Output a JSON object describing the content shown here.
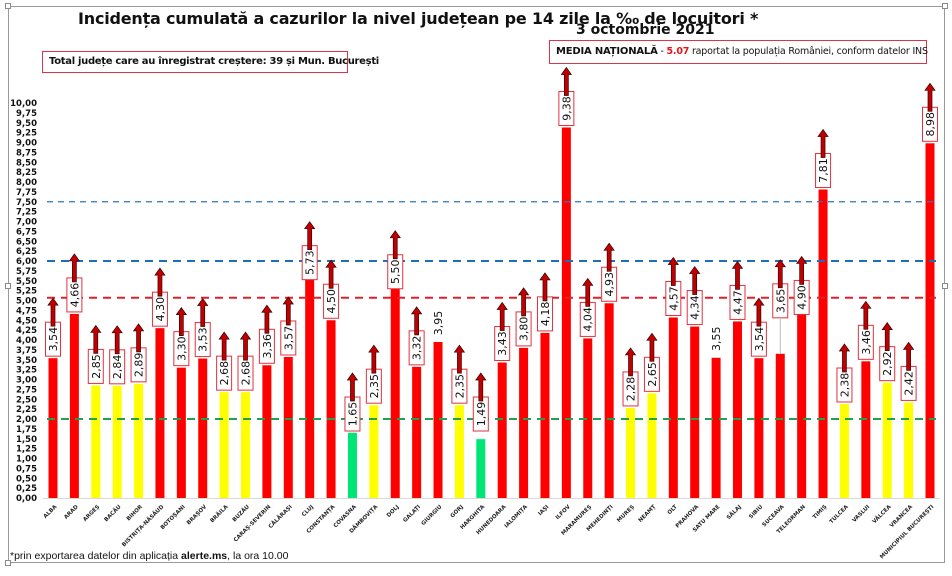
{
  "header": {
    "title": "Incidența cumulată a cazurilor la nivel județean pe 14 zile la ‰ de locuitori *",
    "date": "3 octombrie 2021"
  },
  "annotations": {
    "total_box_prefix": "Total județe care au înregistrat creștere:  ",
    "total_box_value": "39 și Mun. București",
    "media_label": "MEDIA NAȚIONALĂ",
    "media_dash": " - ",
    "media_value": "5.07",
    "media_suffix": " raportat la populația României, conform datelor INS",
    "footnote_prefix": "*prin exportarea datelor din aplicația ",
    "footnote_bold": "alerte.ms",
    "footnote_suffix": ", la ora 10.00"
  },
  "colors": {
    "red": "#ff0000",
    "yellow": "#ffff00",
    "green": "#00e676",
    "arrow": "#c00000",
    "label_border": "#e0323f",
    "line_green": "#20a050",
    "line_red": "#e0202a",
    "line_blue": "#1f6fb8",
    "line_blue_light": "#2e75b6"
  },
  "chart_data": {
    "type": "bar",
    "title": "Incidența cumulată a cazurilor la nivel județean pe 14 zile la ‰ de locuitori *",
    "subtitle": "3 octombrie 2021",
    "xlabel": "",
    "ylabel": "",
    "ylim": [
      0,
      10
    ],
    "ytick_step": 0.25,
    "yticks": [
      "0,00",
      "0,25",
      "0,50",
      "0,75",
      "1,00",
      "1,25",
      "1,50",
      "1,75",
      "2,00",
      "2,25",
      "2,50",
      "2,75",
      "3,00",
      "3,25",
      "3,50",
      "3,75",
      "4,00",
      "4,25",
      "4,50",
      "4,75",
      "5,00",
      "5,25",
      "5,50",
      "5,75",
      "6,00",
      "6,25",
      "6,50",
      "6,75",
      "7,00",
      "7,25",
      "7,50",
      "7,75",
      "8,00",
      "8,25",
      "8,50",
      "8,75",
      "9,00",
      "9,25",
      "9,50",
      "9,75",
      "10,00"
    ],
    "grid": false,
    "legend": "none",
    "categories": [
      "ALBA",
      "ARAD",
      "ARGEȘ",
      "BACĂU",
      "BIHOR",
      "BISTRIȚA-NĂSĂUD",
      "BOTOȘANI",
      "BRAȘOV",
      "BRĂILA",
      "BUZĂU",
      "CARAȘ-SEVERIN",
      "CĂLĂRAȘI",
      "CLUJ",
      "CONSTANȚA",
      "COVASNA",
      "DÂMBOVIȚA",
      "DOLJ",
      "GALAȚI",
      "GIURGIU",
      "GORJ",
      "HARGHITA",
      "HUNEDOARA",
      "IALOMIȚA",
      "IAȘI",
      "ILFOV",
      "MARAMUREȘ",
      "MEHEDINȚI",
      "MUREȘ",
      "NEAMȚ",
      "OLT",
      "PRAHOVA",
      "SATU MARE",
      "SĂLAJ",
      "SIBIU",
      "SUCEAVA",
      "TELEORMAN",
      "TIMIȘ",
      "TULCEA",
      "VASLUI",
      "VÂLCEA",
      "VRANCEA",
      "MUNICIPIUL BUCUREȘTI"
    ],
    "values": [
      3.54,
      4.66,
      2.85,
      2.84,
      2.89,
      4.3,
      3.3,
      3.53,
      2.68,
      2.68,
      3.36,
      3.57,
      5.73,
      4.5,
      1.65,
      2.35,
      5.5,
      3.32,
      3.95,
      2.35,
      1.49,
      3.43,
      3.8,
      4.18,
      9.38,
      4.04,
      4.93,
      2.28,
      2.65,
      4.57,
      4.34,
      3.55,
      4.47,
      3.54,
      3.65,
      4.9,
      7.81,
      2.38,
      3.46,
      2.92,
      2.42,
      8.98
    ],
    "value_labels": [
      "3,54",
      "4,66",
      "2,85",
      "2,84",
      "2,89",
      "4,30",
      "3,30",
      "3,53",
      "2,68",
      "2,68",
      "3,36",
      "3,57",
      "5,73",
      "4,50",
      "1,65",
      "2,35",
      "5,50",
      "3,32",
      "3,95",
      "2,35",
      "1,49",
      "3,43",
      "3,80",
      "4,18",
      "9,38",
      "4,04",
      "4,93",
      "2,28",
      "2,65",
      "4,57",
      "4,34",
      "3,55",
      "4,47",
      "3,54",
      "3,65",
      "4,90",
      "7,81",
      "2,38",
      "3,46",
      "2,92",
      "2,42",
      "8,98"
    ],
    "color_class": [
      "red",
      "red",
      "yellow",
      "yellow",
      "yellow",
      "red",
      "red",
      "red",
      "yellow",
      "yellow",
      "red",
      "red",
      "red",
      "red",
      "green",
      "yellow",
      "red",
      "red",
      "red",
      "yellow",
      "green",
      "red",
      "red",
      "red",
      "red",
      "red",
      "red",
      "yellow",
      "yellow",
      "red",
      "red",
      "red",
      "red",
      "red",
      "red",
      "red",
      "red",
      "yellow",
      "red",
      "yellow",
      "yellow",
      "red"
    ],
    "increasing": [
      true,
      true,
      true,
      true,
      true,
      true,
      true,
      true,
      true,
      true,
      true,
      true,
      true,
      true,
      true,
      true,
      true,
      true,
      false,
      true,
      true,
      true,
      true,
      true,
      true,
      true,
      true,
      true,
      true,
      true,
      true,
      false,
      true,
      true,
      true,
      true,
      true,
      true,
      true,
      true,
      true,
      true
    ],
    "boxed_label": [
      true,
      true,
      true,
      true,
      true,
      true,
      true,
      true,
      true,
      true,
      true,
      true,
      true,
      true,
      true,
      true,
      true,
      true,
      false,
      true,
      true,
      true,
      true,
      true,
      true,
      true,
      true,
      true,
      true,
      true,
      true,
      false,
      true,
      true,
      true,
      true,
      true,
      true,
      true,
      true,
      true,
      true
    ],
    "reference_lines": [
      {
        "name": "threshold-1.5",
        "value": 2.0,
        "color": "green",
        "style": "dashed"
      },
      {
        "name": "media-nationala",
        "value": 5.07,
        "color": "red",
        "style": "dashed"
      },
      {
        "name": "threshold-6",
        "value": 6.0,
        "color": "blue",
        "style": "dashed"
      },
      {
        "name": "threshold-7.5",
        "value": 7.5,
        "color": "blue-light",
        "style": "dashed"
      }
    ]
  }
}
